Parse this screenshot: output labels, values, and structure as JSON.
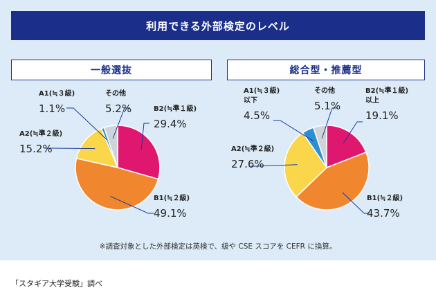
{
  "title": "利用できる外部検定のレベル",
  "footnote": "※調査対象とした外部検定は英検で、級や CSE スコアを CEFR に換算。",
  "source": "「スタギア大学受験」調べ",
  "colors": {
    "banner": "#1a2e8a",
    "panel": "#dcebf7",
    "leader": "#1a3a9a"
  },
  "chart_data": [
    {
      "type": "pie",
      "title": "一般選抜",
      "categories": [
        "B2(≒準1級)",
        "B1(≒2級)",
        "A2(≒準2級)",
        "A1(≒3級)",
        "その他"
      ],
      "values": [
        29.4,
        49.1,
        15.2,
        1.1,
        5.2
      ],
      "value_labels": [
        "29.4%",
        "49.1%",
        "15.2%",
        "1.1%",
        "5.2%"
      ],
      "label_lines": [
        [
          "B2(≒準１級)"
        ],
        [
          "B1(≒２級)"
        ],
        [
          "A2(≒準２級)"
        ],
        [
          "A1(≒３級)"
        ],
        [
          "その他"
        ]
      ],
      "colors": [
        "#e0176e",
        "#f0862e",
        "#f9d64a",
        "#2b8fd6",
        "#cfd4d8"
      ]
    },
    {
      "type": "pie",
      "title": "総合型・推薦型",
      "categories": [
        "B2(≒準1級)以上",
        "B1(≒2級)",
        "A2(≒準2級)",
        "A1(≒3級)以下",
        "その他"
      ],
      "values": [
        19.1,
        43.7,
        27.6,
        4.5,
        5.1
      ],
      "value_labels": [
        "19.1%",
        "43.7%",
        "27.6%",
        "4.5%",
        "5.1%"
      ],
      "label_lines": [
        [
          "B2(≒準１級)",
          "以上"
        ],
        [
          "B1(≒２級)"
        ],
        [
          "A2(≒準２級)"
        ],
        [
          "A1(≒３級)",
          "以下"
        ],
        [
          "その他"
        ]
      ],
      "colors": [
        "#e0176e",
        "#f0862e",
        "#f9d64a",
        "#2b8fd6",
        "#cfd4d8"
      ]
    }
  ]
}
